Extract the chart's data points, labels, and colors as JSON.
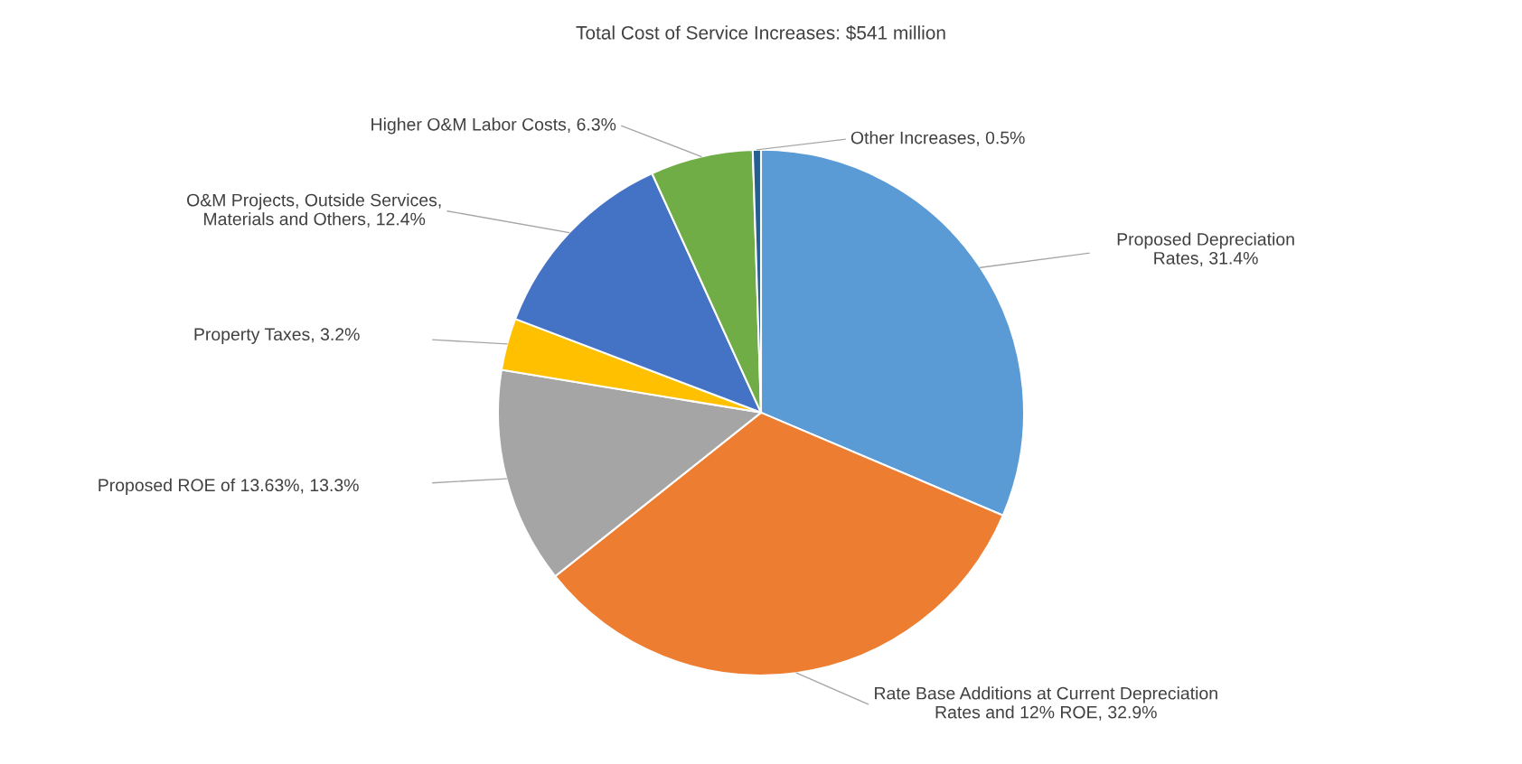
{
  "chart_data": {
    "type": "pie",
    "title": "Total Cost of Service Increases: $541 million",
    "categories": [
      "Proposed Depreciation\nRates",
      "Rate Base Additions at Current Depreciation\nRates and 12% ROE",
      "Proposed ROE of 13.63%",
      "Property Taxes",
      "O&M Projects, Outside Services,\nMaterials and Others",
      "Higher O&M Labor Costs",
      "Other Increases"
    ],
    "values": [
      31.4,
      32.9,
      13.3,
      3.2,
      12.4,
      6.3,
      0.5
    ],
    "value_labels": [
      "31.4%",
      "32.9%",
      "13.3%",
      "3.2%",
      "12.4%",
      "6.3%",
      "0.5%"
    ],
    "colors": [
      "#5b9bd5",
      "#ed7d31",
      "#a5a5a5",
      "#ffc000",
      "#4472c4",
      "#70ad47",
      "#255e91"
    ],
    "legend": false
  }
}
